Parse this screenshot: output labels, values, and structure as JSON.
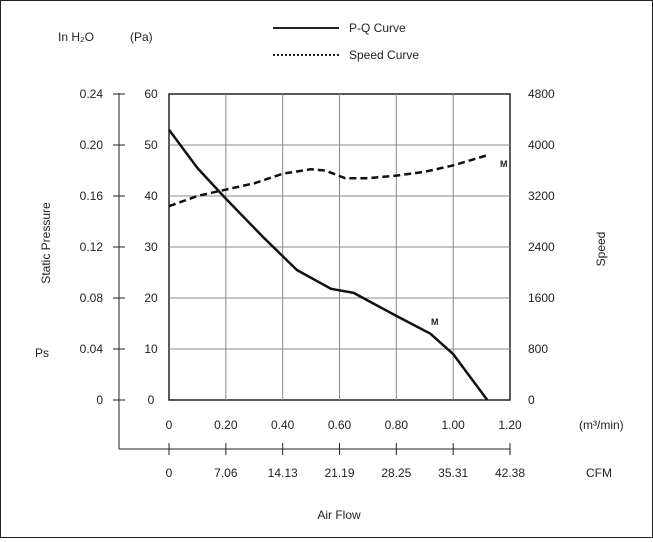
{
  "chart_data": {
    "type": "line",
    "units": {
      "pressure_inh2o": "In H₂O",
      "pressure_pa": "(Pa)",
      "flow_m3": "(m³/min)",
      "flow_cfm": "CFM"
    },
    "ylabel_left": "Static Pressure",
    "ylabel_left_symbol": "Ps",
    "ylabel_right": "Speed",
    "xlabel": "Air Flow",
    "x_ticks_m3": [
      "0",
      "0.20",
      "0.40",
      "0.60",
      "0.80",
      "1.00",
      "1.20"
    ],
    "x_ticks_cfm": [
      "0",
      "7.06",
      "14.13",
      "21.19",
      "28.25",
      "35.31",
      "42.38"
    ],
    "y_ticks_pa": [
      "0",
      "10",
      "20",
      "30",
      "40",
      "50",
      "60"
    ],
    "y_ticks_inh2o": [
      "0",
      "0.04",
      "0.08",
      "0.12",
      "0.16",
      "0.20",
      "0.24"
    ],
    "y_ticks_speed": [
      "0",
      "800",
      "1600",
      "2400",
      "3200",
      "4000",
      "4800"
    ],
    "xlim": [
      0,
      1.2
    ],
    "ylim_pa": [
      0,
      60
    ],
    "ylim_speed": [
      0,
      4800
    ],
    "grid": true,
    "legend_position": "top-center",
    "series": [
      {
        "name": "P-Q Curve",
        "style": "solid",
        "axis": "pressure_pa",
        "marker_label": "M",
        "points": [
          [
            0,
            53
          ],
          [
            0.1,
            45.5
          ],
          [
            0.2,
            39.5
          ],
          [
            0.33,
            32
          ],
          [
            0.45,
            25.5
          ],
          [
            0.57,
            21.8
          ],
          [
            0.65,
            21
          ],
          [
            0.8,
            16.5
          ],
          [
            0.92,
            13
          ],
          [
            1.0,
            9
          ],
          [
            1.12,
            0
          ]
        ]
      },
      {
        "name": "Speed Curve",
        "style": "dashed",
        "axis": "speed",
        "marker_label": "M",
        "points": [
          [
            0,
            3040
          ],
          [
            0.1,
            3200
          ],
          [
            0.2,
            3300
          ],
          [
            0.3,
            3400
          ],
          [
            0.4,
            3550
          ],
          [
            0.5,
            3620
          ],
          [
            0.55,
            3600
          ],
          [
            0.62,
            3480
          ],
          [
            0.7,
            3480
          ],
          [
            0.8,
            3520
          ],
          [
            0.9,
            3580
          ],
          [
            1.0,
            3680
          ],
          [
            1.12,
            3840
          ]
        ]
      }
    ]
  }
}
